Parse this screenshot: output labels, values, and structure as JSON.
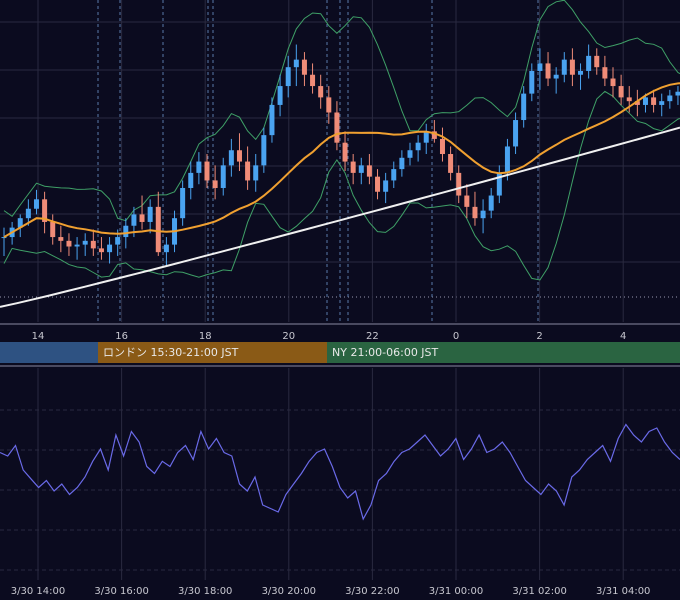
{
  "colors": {
    "background": "#0b0b1f",
    "grid": "#2a2a40",
    "candle_up": "#4aa3f0",
    "candle_down": "#f08c78",
    "bollinger": "#3fa067",
    "ma_mid": "#f0a030",
    "ma_long": "#f0f0f0",
    "oscillator": "#6a6ae8",
    "session_asia": "#2e5282",
    "session_london": "#8a5a16",
    "session_ny": "#2a6441"
  },
  "sessions": {
    "london": "ロンドン 15:30-21:00 JST",
    "ny": "NY 21:00-06:00 JST"
  },
  "chart_data": [
    {
      "type": "candlestick",
      "name": "price-panel",
      "x_tick_labels": [
        "14",
        "16",
        "18",
        "20",
        "22",
        "0",
        "2",
        "4"
      ],
      "candles": [
        [
          0.0,
          153.7,
          153.75,
          153.6,
          153.7
        ],
        [
          0.2,
          153.7,
          153.78,
          153.66,
          153.75
        ],
        [
          0.4,
          153.75,
          153.82,
          153.7,
          153.8
        ],
        [
          0.6,
          153.8,
          153.9,
          153.76,
          153.85
        ],
        [
          0.8,
          153.85,
          153.95,
          153.82,
          153.9
        ],
        [
          1.0,
          153.9,
          153.94,
          153.72,
          153.78
        ],
        [
          1.2,
          153.78,
          153.82,
          153.66,
          153.7
        ],
        [
          1.4,
          153.7,
          153.76,
          153.62,
          153.68
        ],
        [
          1.6,
          153.68,
          153.72,
          153.6,
          153.65
        ],
        [
          1.8,
          153.65,
          153.7,
          153.58,
          153.66
        ],
        [
          2.0,
          153.66,
          153.72,
          153.6,
          153.68
        ],
        [
          2.2,
          153.68,
          153.74,
          153.6,
          153.64
        ],
        [
          2.4,
          153.64,
          153.7,
          153.58,
          153.62
        ],
        [
          2.6,
          153.62,
          153.7,
          153.56,
          153.66
        ],
        [
          2.8,
          153.66,
          153.74,
          153.6,
          153.7
        ],
        [
          3.0,
          153.7,
          153.8,
          153.64,
          153.76
        ],
        [
          3.2,
          153.76,
          153.86,
          153.7,
          153.82
        ],
        [
          3.4,
          153.82,
          153.92,
          153.74,
          153.78
        ],
        [
          3.6,
          153.78,
          153.9,
          153.72,
          153.86
        ],
        [
          3.8,
          153.86,
          153.94,
          153.6,
          153.62
        ],
        [
          4.0,
          153.62,
          153.7,
          153.55,
          153.66
        ],
        [
          4.2,
          153.66,
          153.84,
          153.62,
          153.8
        ],
        [
          4.4,
          153.8,
          154.0,
          153.76,
          153.96
        ],
        [
          4.6,
          153.96,
          154.1,
          153.9,
          154.04
        ],
        [
          4.8,
          154.04,
          154.15,
          153.98,
          154.1
        ],
        [
          5.0,
          154.1,
          154.14,
          153.96,
          154.0
        ],
        [
          5.2,
          154.0,
          154.08,
          153.9,
          153.96
        ],
        [
          5.4,
          153.96,
          154.12,
          153.92,
          154.08
        ],
        [
          5.6,
          154.08,
          154.22,
          154.02,
          154.16
        ],
        [
          5.8,
          154.16,
          154.25,
          154.05,
          154.1
        ],
        [
          6.0,
          154.1,
          154.18,
          153.95,
          154.0
        ],
        [
          6.2,
          154.0,
          154.14,
          153.94,
          154.08
        ],
        [
          6.4,
          154.08,
          154.28,
          154.04,
          154.24
        ],
        [
          6.6,
          154.24,
          154.44,
          154.2,
          154.4
        ],
        [
          6.8,
          154.4,
          154.56,
          154.34,
          154.5
        ],
        [
          7.0,
          154.5,
          154.66,
          154.44,
          154.6
        ],
        [
          7.2,
          154.6,
          154.72,
          154.5,
          154.64
        ],
        [
          7.4,
          154.64,
          154.68,
          154.5,
          154.56
        ],
        [
          7.6,
          154.56,
          154.62,
          154.46,
          154.5
        ],
        [
          7.8,
          154.5,
          154.56,
          154.38,
          154.44
        ],
        [
          8.0,
          154.44,
          154.5,
          154.3,
          154.36
        ],
        [
          8.2,
          154.36,
          154.42,
          154.16,
          154.2
        ],
        [
          8.4,
          154.2,
          154.26,
          154.05,
          154.1
        ],
        [
          8.6,
          154.1,
          154.14,
          153.98,
          154.04
        ],
        [
          8.8,
          154.04,
          154.12,
          153.98,
          154.08
        ],
        [
          9.0,
          154.08,
          154.14,
          153.98,
          154.02
        ],
        [
          9.2,
          154.02,
          154.06,
          153.9,
          153.94
        ],
        [
          9.4,
          153.94,
          154.04,
          153.88,
          154.0
        ],
        [
          9.6,
          154.0,
          154.1,
          153.96,
          154.06
        ],
        [
          9.8,
          154.06,
          154.16,
          154.02,
          154.12
        ],
        [
          10.0,
          154.12,
          154.2,
          154.08,
          154.16
        ],
        [
          10.2,
          154.16,
          154.24,
          154.1,
          154.2
        ],
        [
          10.4,
          154.2,
          154.3,
          154.14,
          154.26
        ],
        [
          10.6,
          154.26,
          154.32,
          154.2,
          154.22
        ],
        [
          10.8,
          154.22,
          154.28,
          154.1,
          154.14
        ],
        [
          11.0,
          154.14,
          154.18,
          154.0,
          154.04
        ],
        [
          11.2,
          154.04,
          154.08,
          153.88,
          153.92
        ],
        [
          11.4,
          153.92,
          153.98,
          153.8,
          153.86
        ],
        [
          11.6,
          153.86,
          153.94,
          153.76,
          153.8
        ],
        [
          11.8,
          153.8,
          153.9,
          153.72,
          153.84
        ],
        [
          12.0,
          153.84,
          153.96,
          153.8,
          153.92
        ],
        [
          12.2,
          153.92,
          154.08,
          153.88,
          154.04
        ],
        [
          12.4,
          154.04,
          154.22,
          154.0,
          154.18
        ],
        [
          12.6,
          154.18,
          154.36,
          154.14,
          154.32
        ],
        [
          12.8,
          154.32,
          154.5,
          154.28,
          154.46
        ],
        [
          13.0,
          154.46,
          154.62,
          154.42,
          154.58
        ],
        [
          13.2,
          154.58,
          154.7,
          154.48,
          154.62
        ],
        [
          13.4,
          154.62,
          154.68,
          154.5,
          154.54
        ],
        [
          13.6,
          154.54,
          154.6,
          154.46,
          154.56
        ],
        [
          13.8,
          154.56,
          154.68,
          154.52,
          154.64
        ],
        [
          14.0,
          154.64,
          154.7,
          154.5,
          154.56
        ],
        [
          14.2,
          154.56,
          154.62,
          154.48,
          154.58
        ],
        [
          14.4,
          154.58,
          154.72,
          154.54,
          154.66
        ],
        [
          14.6,
          154.66,
          154.7,
          154.56,
          154.6
        ],
        [
          14.8,
          154.6,
          154.66,
          154.5,
          154.54
        ],
        [
          15.0,
          154.54,
          154.6,
          154.44,
          154.5
        ],
        [
          15.2,
          154.5,
          154.56,
          154.4,
          154.44
        ],
        [
          15.4,
          154.44,
          154.5,
          154.36,
          154.42
        ],
        [
          15.6,
          154.42,
          154.48,
          154.34,
          154.4
        ],
        [
          15.8,
          154.4,
          154.46,
          154.36,
          154.44
        ],
        [
          16.0,
          154.44,
          154.48,
          154.36,
          154.4
        ],
        [
          16.2,
          154.4,
          154.46,
          154.34,
          154.42
        ],
        [
          16.4,
          154.42,
          154.48,
          154.38,
          154.45
        ],
        [
          16.6,
          154.45,
          154.5,
          154.4,
          154.47
        ],
        [
          16.8,
          154.47,
          154.52,
          154.42,
          154.5
        ]
      ],
      "overlays": [
        "bollinger-upper",
        "bollinger-lower",
        "ma-mid",
        "ma-long"
      ]
    },
    {
      "type": "line",
      "name": "oscillator-panel",
      "x_tick_labels": [
        "3/30 14:00",
        "3/30 16:00",
        "3/30 18:00",
        "3/30 20:00",
        "3/30 22:00",
        "3/31 00:00",
        "3/31 02:00",
        "3/31 04:00"
      ],
      "values": [
        60,
        58,
        64,
        50,
        45,
        40,
        44,
        38,
        42,
        36,
        40,
        46,
        55,
        62,
        50,
        70,
        58,
        72,
        66,
        52,
        48,
        55,
        52,
        60,
        64,
        56,
        72,
        62,
        68,
        60,
        58,
        42,
        38,
        46,
        30,
        28,
        26,
        36,
        42,
        48,
        55,
        60,
        62,
        52,
        40,
        34,
        38,
        22,
        30,
        44,
        48,
        55,
        60,
        62,
        66,
        70,
        64,
        58,
        62,
        68,
        56,
        62,
        70,
        60,
        62,
        66,
        60,
        52,
        44,
        40,
        36,
        42,
        38,
        30,
        46,
        50,
        56,
        60,
        64,
        55,
        68,
        76,
        70,
        66,
        72,
        74,
        66,
        60,
        56
      ]
    }
  ]
}
